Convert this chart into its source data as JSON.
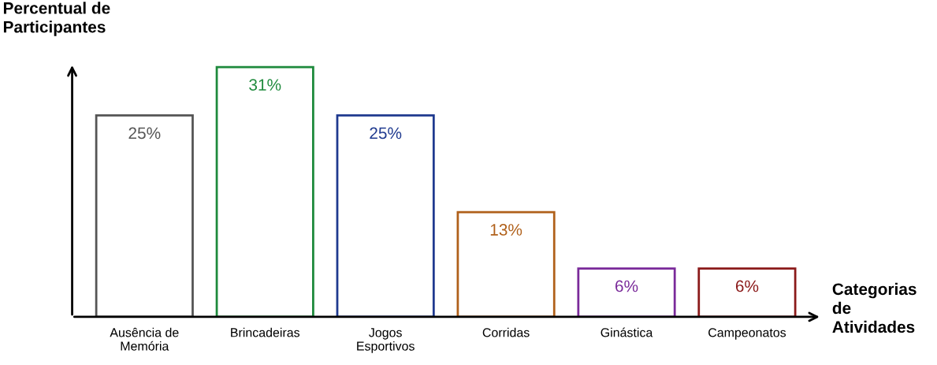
{
  "chart_data": {
    "type": "bar",
    "ylabel": "Percentual de\nParticipantes",
    "xlabel": "Categorias\nde\nAtividades",
    "categories": [
      "Ausência de\nMemória",
      "Brincadeiras",
      "Jogos\nEsportivos",
      "Corridas",
      "Ginástica",
      "Campeonatos"
    ],
    "values": [
      25,
      31,
      25,
      13,
      6,
      6
    ],
    "colors": [
      "#555555",
      "#1e8a3c",
      "#1f3a8f",
      "#b0601a",
      "#7a2a9a",
      "#8b1a1a"
    ],
    "value_labels": [
      "25%",
      "31%",
      "25%",
      "13%",
      "6%",
      "6%"
    ],
    "tick_labels": "x",
    "grid": false,
    "legend": false
  }
}
